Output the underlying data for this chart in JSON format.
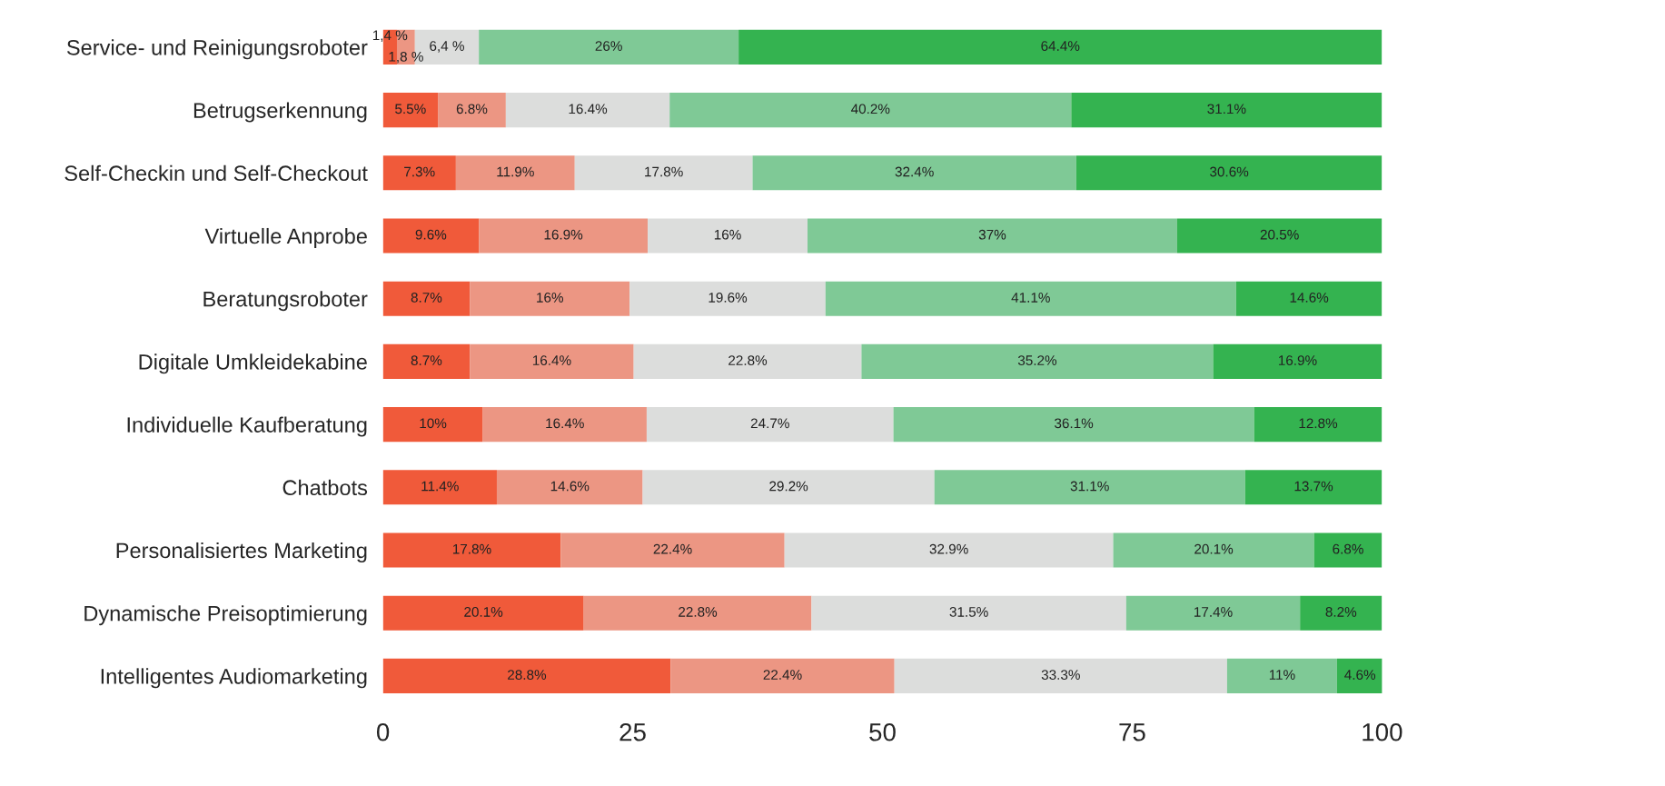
{
  "chart_data": {
    "type": "bar",
    "orientation": "horizontal",
    "stacked": true,
    "categories": [
      "Service- und Reinigungsroboter",
      "Betrugserkennung",
      "Self-Checkin und Self-Checkout",
      "Virtuelle Anprobe",
      "Beratungsroboter",
      "Digitale Umkleidekabine",
      "Individuelle Kaufberatung",
      "Chatbots",
      "Personalisiertes Marketing",
      "Dynamische Preisoptimierung",
      "Intelligentes Audiomarketing"
    ],
    "series": [
      {
        "color": "#f05a3a",
        "values": [
          1.4,
          5.5,
          7.3,
          9.6,
          8.7,
          8.7,
          10,
          11.4,
          17.8,
          20.1,
          28.8
        ],
        "value_labels": [
          "1,4 %",
          "5.5%",
          "7.3%",
          "9.6%",
          "8.7%",
          "8.7%",
          "10%",
          "11.4%",
          "17.8%",
          "20.1%",
          "28.8%"
        ]
      },
      {
        "color": "#ec9683",
        "values": [
          1.8,
          6.8,
          11.9,
          16.9,
          16,
          16.4,
          16.4,
          14.6,
          22.4,
          22.8,
          22.4
        ],
        "value_labels": [
          "1,8 %",
          "6.8%",
          "11.9%",
          "16.9%",
          "16%",
          "16.4%",
          "16.4%",
          "14.6%",
          "22.4%",
          "22.8%",
          "22.4%"
        ]
      },
      {
        "color": "#dcdddc",
        "values": [
          6.4,
          16.4,
          17.8,
          16,
          19.6,
          22.8,
          24.7,
          29.2,
          32.9,
          31.5,
          33.3
        ],
        "value_labels": [
          "6,4 %",
          "16.4%",
          "17.8%",
          "16%",
          "19.6%",
          "22.8%",
          "24.7%",
          "29.2%",
          "32.9%",
          "31.5%",
          "33.3%"
        ]
      },
      {
        "color": "#7fc996",
        "values": [
          26,
          40.2,
          32.4,
          37,
          41.1,
          35.2,
          36.1,
          31.1,
          20.1,
          17.4,
          11
        ],
        "value_labels": [
          "26%",
          "40.2%",
          "32.4%",
          "37%",
          "41.1%",
          "35.2%",
          "36.1%",
          "31.1%",
          "20.1%",
          "17.4%",
          "11%"
        ]
      },
      {
        "color": "#34b350",
        "values": [
          64.4,
          31.1,
          30.6,
          20.5,
          14.6,
          16.9,
          12.8,
          13.7,
          6.8,
          8.2,
          4.6
        ],
        "value_labels": [
          "64.4%",
          "31.1%",
          "30.6%",
          "20.5%",
          "14.6%",
          "16.9%",
          "12.8%",
          "13.7%",
          "6.8%",
          "8.2%",
          "4.6%"
        ]
      }
    ],
    "xlim": [
      0,
      100
    ],
    "xticks": [
      0,
      25,
      50,
      75,
      100
    ],
    "grid": false,
    "legend": false
  }
}
